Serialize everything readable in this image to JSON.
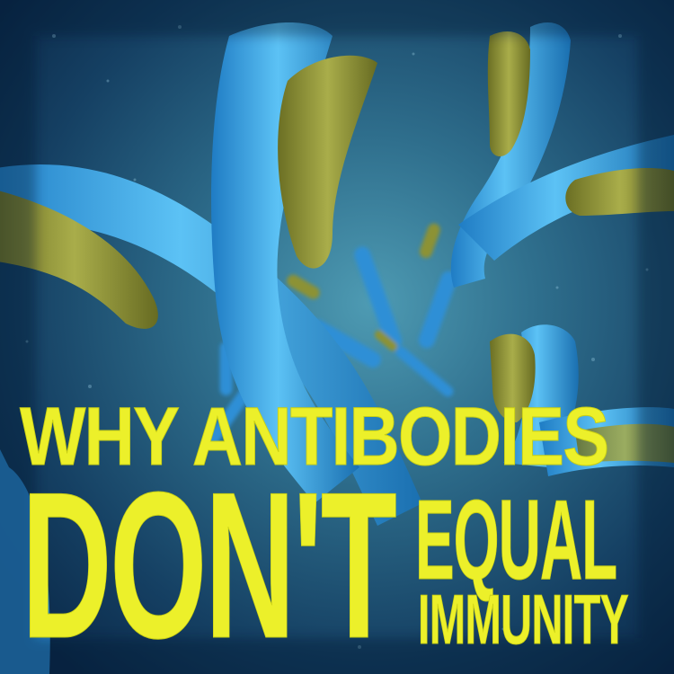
{
  "headline": {
    "line1": "WHY ANTIBODIES",
    "line2": "DON'T",
    "line3": "EQUAL",
    "line4": "IMMUNITY"
  },
  "colors": {
    "text": "#ecf02a",
    "background_dark": "#0b2a4a",
    "background_glow": "#3f8aa3",
    "antibody_blue": "#3aa4e6",
    "antibody_tip": "#8f9436"
  }
}
